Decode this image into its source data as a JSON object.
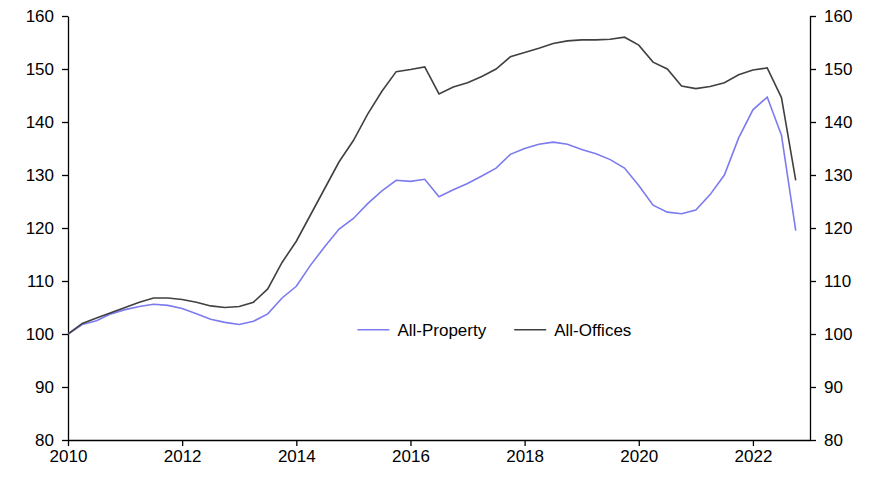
{
  "chart_data": {
    "type": "line",
    "x": [
      2010,
      2010.25,
      2010.5,
      2010.75,
      2011,
      2011.25,
      2011.5,
      2011.75,
      2012,
      2012.25,
      2012.5,
      2012.75,
      2013,
      2013.25,
      2013.5,
      2013.75,
      2014,
      2014.25,
      2014.5,
      2014.75,
      2015,
      2015.25,
      2015.5,
      2015.75,
      2016,
      2016.25,
      2016.5,
      2016.75,
      2017,
      2017.25,
      2017.5,
      2017.75,
      2018,
      2018.25,
      2018.5,
      2018.75,
      2019,
      2019.25,
      2019.5,
      2019.75,
      2020,
      2020.25,
      2020.5,
      2020.75,
      2021,
      2021.25,
      2021.5,
      2021.75,
      2022,
      2022.25,
      2022.5,
      2022.75
    ],
    "series": [
      {
        "name": "All-Property",
        "color": "#7b7bef",
        "values": [
          100,
          101.8,
          102.5,
          103.8,
          104.6,
          105.2,
          105.6,
          105.4,
          104.8,
          103.8,
          102.8,
          102.2,
          101.8,
          102.4,
          103.8,
          106.8,
          109,
          113,
          116.5,
          119.8,
          121.8,
          124.6,
          127,
          129,
          128.8,
          129.2,
          125.9,
          127.2,
          128.4,
          129.8,
          131.3,
          133.9,
          135,
          135.8,
          136.2,
          135.8,
          134.8,
          134,
          132.9,
          131.3,
          128,
          124.3,
          123,
          122.7,
          123.4,
          126.3,
          130,
          137,
          142.3,
          144.7,
          137.5,
          119.5
        ]
      },
      {
        "name": "All-Offices",
        "color": "#404040",
        "values": [
          100,
          102,
          103,
          104,
          105,
          106,
          106.8,
          106.8,
          106.5,
          106,
          105.3,
          105,
          105.2,
          106,
          108.5,
          113.5,
          117.5,
          122.5,
          127.5,
          132.5,
          136.5,
          141.5,
          145.8,
          149.5,
          149.9,
          150.4,
          145.3,
          146.6,
          147.4,
          148.6,
          150,
          152.3,
          153.1,
          153.9,
          154.8,
          155.3,
          155.5,
          155.5,
          155.6,
          156,
          154.5,
          151.3,
          150,
          146.8,
          146.3,
          146.7,
          147.4,
          148.9,
          149.8,
          150.2,
          144.6,
          129
        ]
      }
    ],
    "xlim": [
      2010,
      2023
    ],
    "xticks": [
      2010,
      2012,
      2014,
      2016,
      2018,
      2020,
      2022
    ],
    "ylim": [
      80,
      160
    ],
    "yticks": [
      80,
      90,
      100,
      110,
      120,
      130,
      140,
      150,
      160
    ],
    "y2lim": [
      80,
      160
    ],
    "y2ticks": [
      80,
      90,
      100,
      110,
      120,
      130,
      140,
      150,
      160
    ],
    "grid": false,
    "legend": "bottom"
  }
}
